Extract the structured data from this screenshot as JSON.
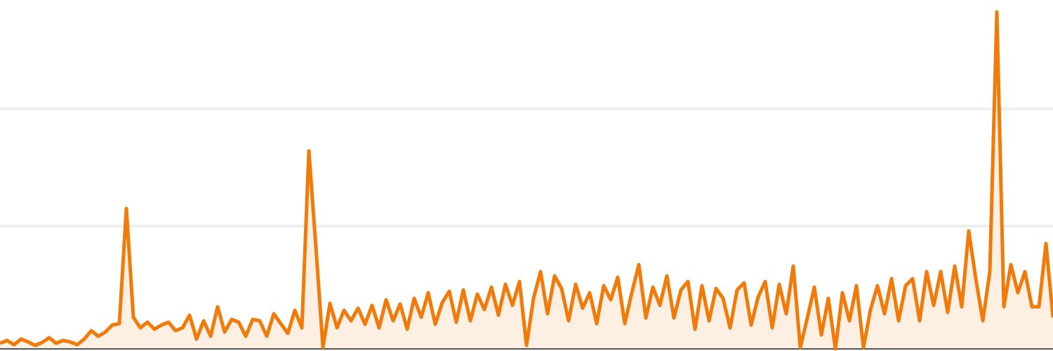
{
  "chart_data": {
    "type": "area",
    "values": [
      8,
      12,
      6,
      14,
      10,
      5,
      9,
      16,
      8,
      12,
      10,
      6,
      14,
      26,
      18,
      24,
      34,
      36,
      200,
      45,
      30,
      38,
      28,
      34,
      38,
      26,
      30,
      48,
      14,
      40,
      18,
      60,
      24,
      42,
      38,
      18,
      42,
      40,
      18,
      50,
      36,
      22,
      55,
      30,
      282,
      145,
      2,
      65,
      30,
      55,
      40,
      58,
      35,
      62,
      30,
      70,
      40,
      64,
      28,
      72,
      45,
      80,
      35,
      66,
      82,
      38,
      84,
      40,
      78,
      56,
      88,
      48,
      92,
      62,
      96,
      5,
      72,
      110,
      50,
      104,
      86,
      40,
      92,
      58,
      80,
      36,
      90,
      70,
      102,
      36,
      80,
      120,
      44,
      88,
      62,
      104,
      44,
      84,
      96,
      28,
      90,
      40,
      86,
      72,
      30,
      84,
      94,
      34,
      74,
      96,
      30,
      92,
      50,
      118,
      2,
      44,
      88,
      20,
      72,
      0,
      80,
      40,
      90,
      2,
      56,
      90,
      50,
      100,
      40,
      90,
      100,
      40,
      110,
      62,
      110,
      52,
      118,
      60,
      168,
      100,
      40,
      110,
      480,
      60,
      120,
      80,
      110,
      60,
      60,
      150,
      45
    ],
    "color": "#f07a0a",
    "fill": "#fdf0e3",
    "ylim": [
      0,
      497
    ],
    "yticks": [
      175,
      342
    ],
    "grid": true
  }
}
